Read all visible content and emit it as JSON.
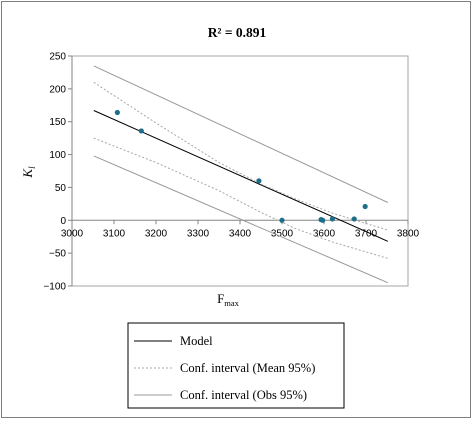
{
  "chart_data": {
    "type": "scatter",
    "title": "R² = 0.891",
    "xlabel": {
      "main": "F",
      "sub": "max"
    },
    "ylabel": {
      "main": "K",
      "sub": "l"
    },
    "xlim": [
      3000,
      3800
    ],
    "ylim": [
      -100,
      250
    ],
    "xticks": [
      "3000",
      "3100",
      "3200",
      "3300",
      "3400",
      "3500",
      "3600",
      "3700",
      "3800"
    ],
    "yticks": [
      "−100",
      "−50",
      "0",
      "50",
      "100",
      "150",
      "200",
      "250"
    ],
    "grid": false,
    "legend_position": "bottom",
    "points": {
      "x": [
        3108,
        3165,
        3445,
        3500,
        3593,
        3597,
        3620,
        3672,
        3698
      ],
      "y": [
        164,
        136,
        60,
        0,
        1,
        0,
        2,
        2,
        21
      ]
    },
    "lines": [
      {
        "name": "Model",
        "color": "#000000",
        "style": "solid",
        "x": [
          3052,
          3752
        ],
        "y": [
          167,
          -32
        ]
      },
      {
        "name": "Conf. interval (Mean 95%)",
        "color": "#a6a6a6",
        "style": "dotted",
        "x": [
          3052,
          3200,
          3350,
          3450,
          3530,
          3620,
          3752
        ],
        "y": [
          210,
          148,
          88,
          55,
          33,
          11,
          -15
        ]
      },
      {
        "name": "Conf. interval (Mean 95%)",
        "color": "#a6a6a6",
        "style": "dotted",
        "x": [
          3052,
          3200,
          3350,
          3450,
          3530,
          3620,
          3752
        ],
        "y": [
          125,
          88,
          45,
          12,
          -12,
          -33,
          -58
        ]
      },
      {
        "name": "Conf. interval (Obs 95%)",
        "color": "#999999",
        "style": "solid",
        "x": [
          3052,
          3752
        ],
        "y": [
          235,
          27
        ]
      },
      {
        "name": "Conf. interval (Obs 95%)",
        "color": "#999999",
        "style": "solid",
        "x": [
          3052,
          3752
        ],
        "y": [
          98,
          -95
        ]
      }
    ],
    "point_color": "#1f6f8b",
    "legend": [
      {
        "label": "Model",
        "color": "#000000",
        "style": "solid"
      },
      {
        "label": "Conf. interval (Mean 95%)",
        "color": "#a6a6a6",
        "style": "dotted"
      },
      {
        "label": "Conf. interval (Obs 95%)",
        "color": "#999999",
        "style": "solid"
      }
    ]
  }
}
